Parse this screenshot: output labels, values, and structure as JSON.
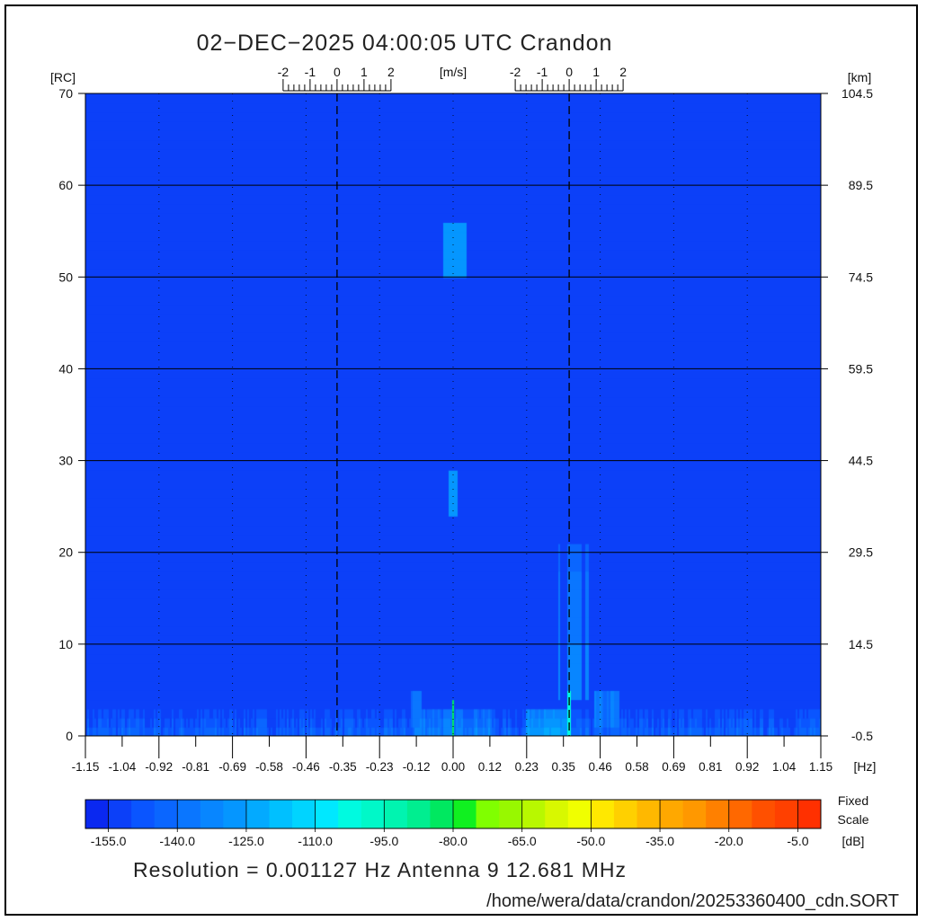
{
  "title": "02−DEC−2025 04:00:05 UTC   Crandon",
  "footer": {
    "resolution": "Resolution = 0.001127 Hz   Antenna  9   12.681 MHz",
    "path": "/home/wera/data/crandon/20253360400_cdn.SORT"
  },
  "chart_data": {
    "type": "heatmap",
    "xlabel": "[Hz]",
    "ylabel_left": "[RC]",
    "ylabel_right": "[km]",
    "xlim": [
      -1.15,
      1.15
    ],
    "ylim": [
      0,
      70
    ],
    "x_ticks": [
      "-1.15",
      "-1.04",
      "-0.92",
      "-0.81",
      "-0.69",
      "-0.58",
      "-0.46",
      "-0.35",
      "-0.23",
      "-0.12",
      "0.00",
      "0.12",
      "0.23",
      "0.35",
      "0.46",
      "0.58",
      "0.69",
      "0.81",
      "0.92",
      "1.04",
      "1.15"
    ],
    "y_ticks_left": [
      "0",
      "10",
      "20",
      "30",
      "40",
      "50",
      "60",
      "70"
    ],
    "y_ticks_right": [
      "-0.5",
      "14.5",
      "29.5",
      "44.5",
      "59.5",
      "74.5",
      "89.5",
      "104.5"
    ],
    "grid": true,
    "bragg_lines_hz": [
      -0.363,
      0.363
    ],
    "velocity_scale": {
      "label": "[m/s]",
      "ticks": [
        "-2",
        "-1",
        "0",
        "1",
        "2"
      ],
      "centers_hz": [
        -0.363,
        0.363
      ]
    },
    "colorbar": {
      "labels": [
        "-155.0",
        "-140.0",
        "-125.0",
        "-110.0",
        "-95.0",
        "-80.0",
        "-65.0",
        "-50.0",
        "-35.0",
        "-20.0",
        "-5.0"
      ],
      "range_db": [
        -160,
        0
      ],
      "step_db": 5,
      "unit": "[dB]",
      "mode_line1": "Fixed",
      "mode_line2": "Scale",
      "colors": [
        "#0a28f0",
        "#0c40f8",
        "#0a55ff",
        "#0a66ff",
        "#0a76ff",
        "#0886ff",
        "#0596ff",
        "#03aaff",
        "#00c0ff",
        "#00d4ff",
        "#00e8ff",
        "#00fae0",
        "#00f8c8",
        "#00f4b0",
        "#00ee90",
        "#00e860",
        "#10f020",
        "#80ff00",
        "#98f800",
        "#b8f800",
        "#d8f800",
        "#f0ff00",
        "#ffe800",
        "#ffd000",
        "#ffb800",
        "#ffa800",
        "#ff9800",
        "#ff8000",
        "#ff6800",
        "#ff5000",
        "#ff4000",
        "#ff3000"
      ]
    },
    "background_db": -152,
    "features": [
      {
        "name": "echo-rc53",
        "hz": [
          -0.03,
          0.04
        ],
        "rc": [
          50.5,
          55.5
        ],
        "db": -130
      },
      {
        "name": "echo-rc27",
        "hz": [
          -0.015,
          0.015
        ],
        "rc": [
          24.5,
          29
        ],
        "db": -130
      },
      {
        "name": "dc-line",
        "hz": [
          -0.004,
          0.004
        ],
        "rc": [
          0,
          4
        ],
        "db": -85
      },
      {
        "name": "near-range-noise",
        "hz": [
          -1.15,
          1.15
        ],
        "rc": [
          0,
          3
        ],
        "db": -145
      },
      {
        "name": "bragg-positive-near",
        "hz": [
          0.23,
          0.36
        ],
        "rc": [
          0,
          3
        ],
        "db": -125
      },
      {
        "name": "bragg-positive-peak",
        "hz": [
          0.355,
          0.37
        ],
        "rc": [
          0,
          5
        ],
        "db": -105
      },
      {
        "name": "bragg-positive-streaks",
        "hz": [
          0.33,
          0.44
        ],
        "rc": [
          4,
          21
        ],
        "db": -132
      },
      {
        "name": "negative-echo",
        "hz": [
          -0.13,
          -0.1
        ],
        "rc": [
          1,
          5
        ],
        "db": -138
      },
      {
        "name": "dc-near",
        "hz": [
          -0.12,
          0.12
        ],
        "rc": [
          0,
          2.5
        ],
        "db": -135
      },
      {
        "name": "positive-secondary",
        "hz": [
          0.44,
          0.52
        ],
        "rc": [
          1,
          5
        ],
        "db": -138
      }
    ]
  }
}
